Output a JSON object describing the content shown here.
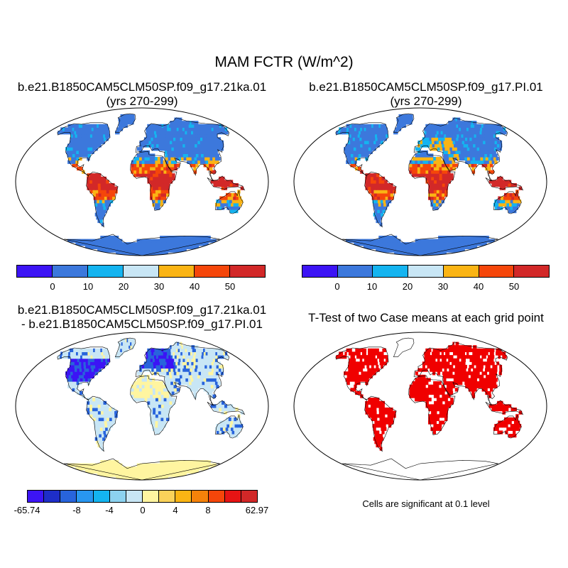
{
  "figure": {
    "title": "MAM FCTR (W/m^2)"
  },
  "panels": {
    "top_left": {
      "title_line1": "b.e21.B1850CAM5CLM50SP.f09_g17.21ka.01",
      "title_line2": "(yrs 270-299)"
    },
    "top_right": {
      "title_line1": "b.e21.B1850CAM5CLM50SP.f09_g17.PI.01",
      "title_line2": "(yrs 270-299)"
    },
    "bottom_left": {
      "title_line1": "b.e21.B1850CAM5CLM50SP.f09_g17.21ka.01",
      "title_line2": "- b.e21.B1850CAM5CLM50SP.f09_g17.PI.01"
    },
    "bottom_right": {
      "title_line1": "T-Test of two Case means at each grid point",
      "note": "Cells are significant at 0.1 level"
    }
  },
  "colorbars": {
    "absolute": {
      "colors": [
        "#3c14f5",
        "#3c78dc",
        "#14b4f0",
        "#c8e6f5",
        "#fab414",
        "#f5460a",
        "#d22828"
      ],
      "labels": [
        "0",
        "10",
        "20",
        "30",
        "40",
        "50"
      ]
    },
    "difference": {
      "colors": [
        "#3c14f5",
        "#1e2ec8",
        "#2864dc",
        "#2896f0",
        "#14b4f0",
        "#8cd2f0",
        "#c8e6f5",
        "#fff5a0",
        "#fad25a",
        "#fab414",
        "#f5820a",
        "#f5460a",
        "#e61414",
        "#d22828"
      ],
      "labels": [
        "-65.74",
        "-8",
        "-4",
        "0",
        "4",
        "8",
        "62.97"
      ]
    }
  },
  "map_colors": {
    "ocean": "#ffffff",
    "abs_cold": "#3c78dc",
    "abs_mid": "#14b4f0",
    "abs_warm": "#fab414",
    "abs_hot": "#f5460a",
    "abs_tropics": "#d22828",
    "diff_base": "#c8e6f5",
    "diff_neg": "#2864dc",
    "diff_strong_neg": "#3c14f5",
    "diff_pos": "#fff5a0",
    "diff_antarctica": "#fff5a0",
    "significant": "#f00000"
  }
}
